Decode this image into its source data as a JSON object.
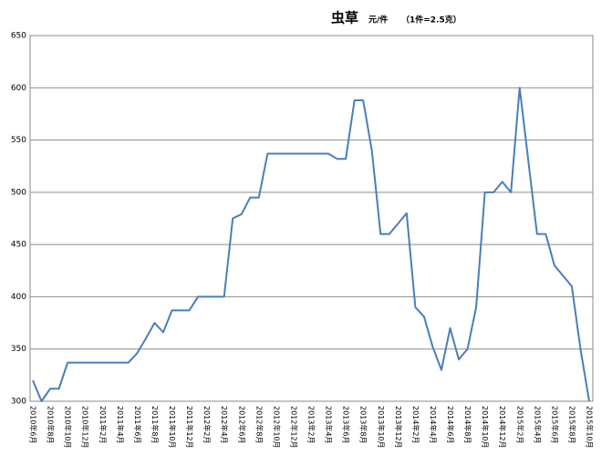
{
  "chart_data": {
    "type": "line",
    "title": "虫草",
    "subtitle": "元/件",
    "annotation": "（1件=2.5克）",
    "categories": [
      "2010年6月",
      null,
      "2010年8月",
      null,
      "2010年10月",
      null,
      "2010年12月",
      null,
      "2011年2月",
      null,
      "2011年4月",
      null,
      "2011年6月",
      null,
      "2011年8月",
      null,
      "2011年10月",
      null,
      "2011年12月",
      null,
      "2012年2月",
      null,
      "2012年4月",
      null,
      "2012年6月",
      null,
      "2012年8月",
      null,
      "2012年10月",
      null,
      "2012年12月",
      null,
      "2013年2月",
      null,
      "2013年4月",
      null,
      "2013年6月",
      null,
      "2013年8月",
      null,
      "2013年10月",
      null,
      "2013年12月",
      null,
      "2014年2月",
      null,
      "2014年4月",
      null,
      "2014年6月",
      null,
      "2014年8月",
      null,
      "2014年10月",
      null,
      "2014年12月",
      null,
      "2015年2月",
      null,
      "2015年4月",
      null,
      "2015年6月",
      null,
      "2015年8月",
      null,
      "2015年10月"
    ],
    "series": [
      {
        "color": "#4a7ebb",
        "values": [
          320,
          300,
          312,
          312,
          337,
          337,
          337,
          337,
          337,
          337,
          337,
          337,
          346,
          360,
          375,
          366,
          387,
          387,
          387,
          400,
          400,
          400,
          400,
          475,
          479,
          495,
          495,
          537,
          537,
          537,
          537,
          537,
          537,
          537,
          537,
          532,
          532,
          588,
          588,
          540,
          460,
          460,
          470,
          480,
          390,
          381,
          352,
          330,
          370,
          340,
          350,
          390,
          500,
          500,
          510,
          500,
          600,
          530,
          460,
          460,
          430,
          420,
          410,
          350,
          300
        ]
      }
    ],
    "ylim": [
      300,
      650
    ],
    "yticks": [
      300,
      350,
      400,
      450,
      500,
      550,
      600,
      650
    ],
    "grid": true
  }
}
